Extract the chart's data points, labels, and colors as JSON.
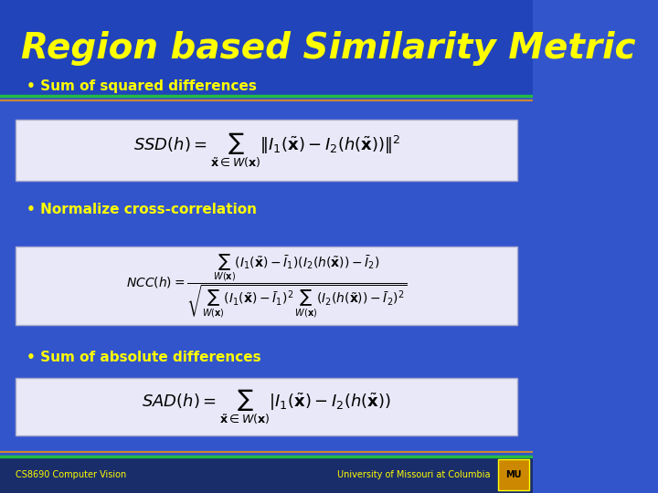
{
  "title": "Region based Similarity Metric",
  "title_color": "#FFFF00",
  "title_bg_color": "#2244BB",
  "title_border_color": "#22BB44",
  "main_bg_color": "#3355CC",
  "footer_bg_color": "#1A2D6B",
  "footer_line_color": "#22BB44",
  "footer_left": "CS8690 Computer Vision",
  "footer_right": "University of Missouri at Columbia",
  "footer_color": "#FFFF00",
  "bullet_color": "#FFFF00",
  "bullet1": "Sum of squared differences",
  "bullet2": "Normalize cross-correlation",
  "bullet3": "Sum of absolute differences",
  "formula_bg": "#E8E8F8",
  "formula_border": "#AAAACC",
  "orange_line_color": "#CC8833",
  "mu_box_color": "#CC8800"
}
